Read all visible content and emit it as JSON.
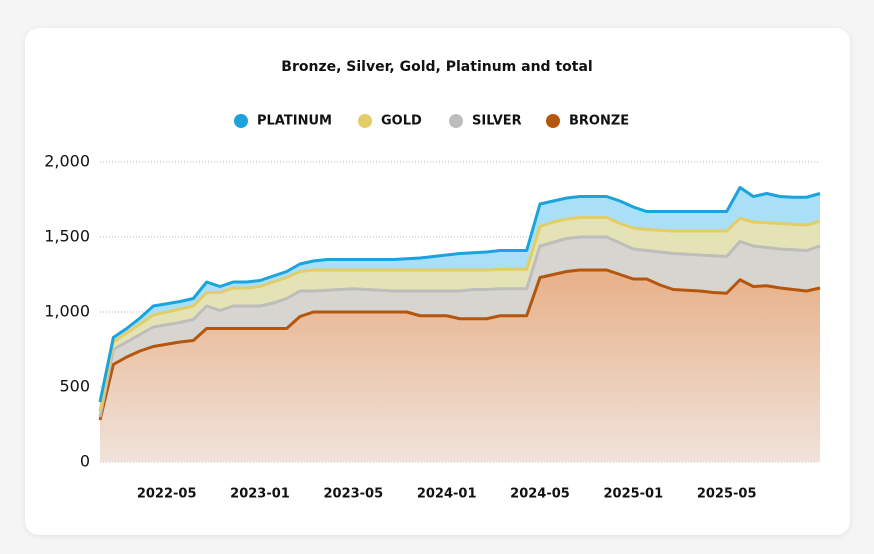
{
  "chart_data": {
    "type": "stacked_area",
    "title": "Bronze, Silver, Gold, Platinum and total",
    "categories": [
      null,
      null,
      null,
      null,
      null,
      "2022-05",
      null,
      null,
      null,
      null,
      null,
      null,
      "2023-01",
      null,
      null,
      null,
      null,
      null,
      null,
      "2023-05",
      null,
      null,
      null,
      null,
      null,
      null,
      "2024-01",
      null,
      null,
      null,
      null,
      null,
      null,
      "2024-05",
      null,
      null,
      null,
      null,
      null,
      null,
      "2025-01",
      null,
      null,
      null,
      null,
      null,
      null,
      "2025-05",
      null,
      null,
      null,
      null,
      null,
      null,
      null
    ],
    "series": [
      {
        "name": "PLATINUM",
        "color": "#1aa3dd",
        "fill": "#aadff8",
        "values": [
          60,
          30,
          30,
          40,
          60,
          55,
          50,
          50,
          70,
          40,
          40,
          40,
          40,
          40,
          40,
          50,
          60,
          70,
          70,
          70,
          70,
          70,
          70,
          75,
          80,
          90,
          100,
          110,
          115,
          120,
          125,
          125,
          125,
          150,
          140,
          140,
          140,
          140,
          140,
          150,
          140,
          120,
          125,
          130,
          130,
          130,
          130,
          130,
          205,
          170,
          195,
          180,
          180,
          185,
          185
        ]
      },
      {
        "name": "GOLD",
        "color": "#e3cd67",
        "fill": "#e4e3b6",
        "values": [
          40,
          50,
          60,
          70,
          80,
          85,
          90,
          90,
          90,
          120,
          120,
          120,
          130,
          140,
          140,
          130,
          140,
          135,
          130,
          125,
          130,
          135,
          140,
          140,
          140,
          140,
          140,
          140,
          130,
          130,
          130,
          130,
          130,
          130,
          135,
          130,
          130,
          130,
          130,
          130,
          140,
          140,
          145,
          150,
          155,
          160,
          165,
          170,
          155,
          160,
          165,
          170,
          170,
          170,
          165
        ]
      },
      {
        "name": "SILVER",
        "color": "#bdbdbb",
        "fill": "#d6d5d0",
        "values": [
          20,
          100,
          100,
          110,
          130,
          130,
          130,
          140,
          150,
          120,
          150,
          150,
          150,
          170,
          200,
          170,
          140,
          145,
          150,
          155,
          150,
          145,
          140,
          140,
          165,
          165,
          165,
          185,
          195,
          195,
          180,
          180,
          180,
          210,
          215,
          220,
          220,
          220,
          220,
          210,
          200,
          190,
          220,
          240,
          240,
          240,
          245,
          245,
          255,
          270,
          255,
          260,
          265,
          270,
          280
        ]
      },
      {
        "name": "BRONZE",
        "color": "#b5560f",
        "fill": "url(#bronzeGrad)",
        "values": [
          280,
          650,
          700,
          740,
          770,
          785,
          800,
          810,
          890,
          890,
          890,
          890,
          890,
          890,
          890,
          970,
          1000,
          1000,
          1000,
          1000,
          1000,
          1000,
          1000,
          1000,
          975,
          975,
          975,
          955,
          955,
          955,
          975,
          975,
          975,
          1230,
          1250,
          1270,
          1280,
          1280,
          1280,
          1250,
          1220,
          1220,
          1180,
          1150,
          1145,
          1140,
          1130,
          1125,
          1215,
          1170,
          1175,
          1160,
          1150,
          1140,
          1160
        ]
      }
    ],
    "ylim": [
      0,
      2000
    ],
    "yticks": [
      0,
      500,
      {
        "value": 1000,
        "label": "1,000"
      },
      {
        "value": 1500,
        "label": "1,500"
      },
      {
        "value": 2000,
        "label": "2,000"
      }
    ],
    "grid": true,
    "legend": "top"
  }
}
